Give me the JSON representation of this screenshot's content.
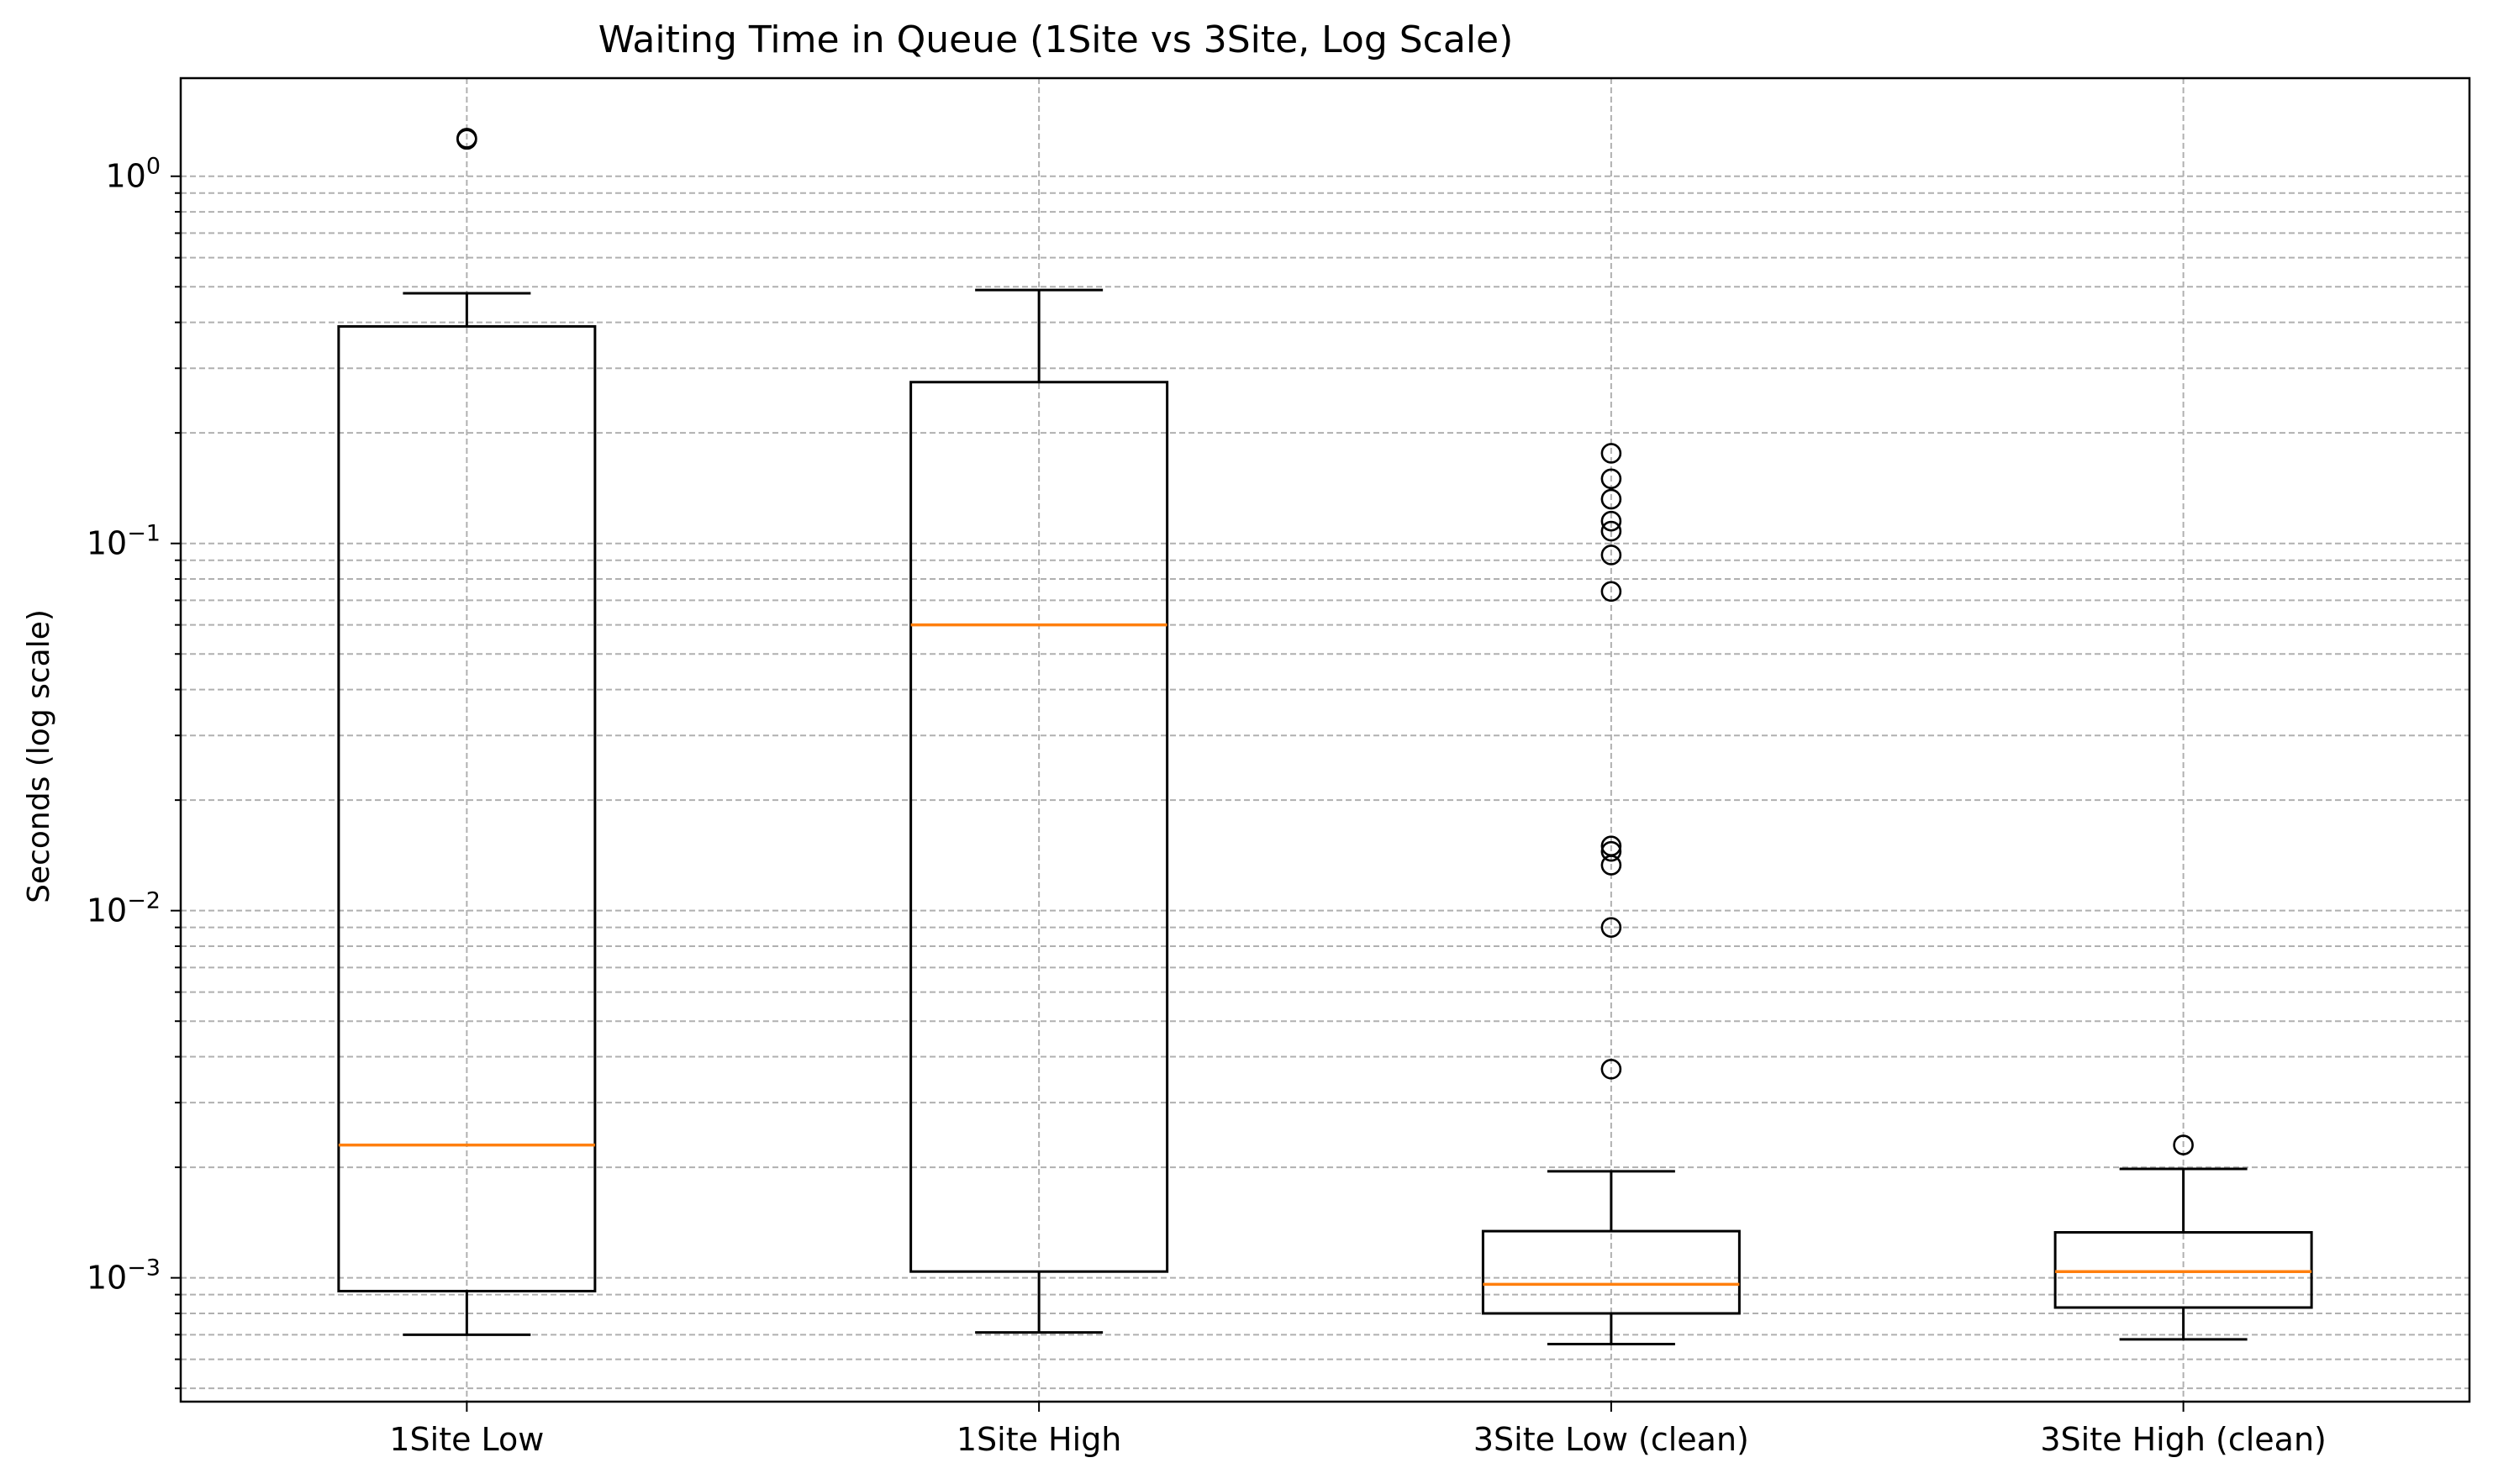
{
  "chart_data": {
    "type": "box",
    "title": "Waiting Time in Queue (1Site vs 3Site, Log Scale)",
    "xlabel": "",
    "ylabel": "Seconds (log scale)",
    "yscale": "log",
    "ylim": [
      0.00046,
      1.85
    ],
    "grid": true,
    "grid_style": "dashed",
    "yticks": [
      {
        "value": 1,
        "base": "10",
        "exp": "0"
      },
      {
        "value": 0.1,
        "base": "10",
        "exp": "−1"
      },
      {
        "value": 0.01,
        "base": "10",
        "exp": "−2"
      },
      {
        "value": 0.001,
        "base": "10",
        "exp": "−3"
      }
    ],
    "categories": [
      "1Site Low",
      "1Site High",
      "3Site Low (clean)",
      "3Site High (clean)"
    ],
    "boxes": [
      {
        "whisker_low": 0.0007,
        "q1": 0.00092,
        "median": 0.0023,
        "q3": 0.39,
        "whisker_high": 0.48,
        "outliers": [
          1.26,
          1.27
        ]
      },
      {
        "whisker_low": 0.00071,
        "q1": 0.00104,
        "median": 0.06,
        "q3": 0.275,
        "whisker_high": 0.49,
        "outliers": []
      },
      {
        "whisker_low": 0.00066,
        "q1": 0.0008,
        "median": 0.00096,
        "q3": 0.00134,
        "whisker_high": 0.00195,
        "outliers": [
          0.0037,
          0.009,
          0.0133,
          0.0145,
          0.015,
          0.074,
          0.093,
          0.108,
          0.115,
          0.132,
          0.15,
          0.176
        ]
      },
      {
        "whisker_low": 0.00068,
        "q1": 0.00083,
        "median": 0.00104,
        "q3": 0.00133,
        "whisker_high": 0.00198,
        "outliers": [
          0.0023
        ]
      }
    ],
    "colors": {
      "box": "#000000",
      "median": "#ff7f0e",
      "grid": "#b0b0b0"
    }
  }
}
